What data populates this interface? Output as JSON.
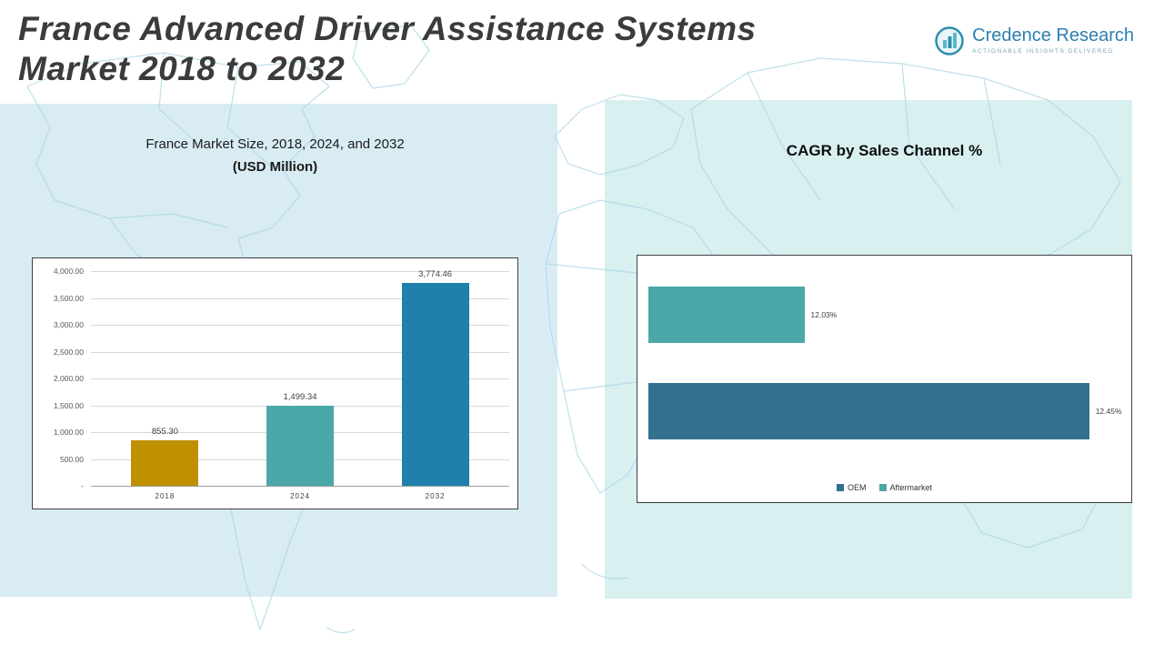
{
  "header": {
    "title_line1": "France Advanced Driver Assistance Systems",
    "title_line2": "Market 2018 to 2032",
    "logo": {
      "name": "Credence Research",
      "tagline": "Actionable Insights Delivered"
    }
  },
  "left_panel": {
    "subtitle_line1": "France Market Size, 2018, 2024, and 2032",
    "subtitle_line2": "(USD Million)"
  },
  "right_panel": {
    "title": "CAGR by Sales Channel %"
  },
  "colors": {
    "panel_left_bg": "#d9ecf4",
    "panel_right_bg": "#d9f0f1",
    "map_line": "#a8d6e6",
    "logo_blue": "#2c7fb0"
  },
  "chart_data": [
    {
      "type": "bar",
      "title": "France Market Size, 2018, 2024, and 2032 (USD Million)",
      "categories": [
        "2018",
        "2024",
        "2032"
      ],
      "values": [
        855.3,
        1499.34,
        3774.46
      ],
      "labels": [
        "855.30",
        "1,499.34",
        "3,774.46"
      ],
      "ylim": [
        0,
        4000
      ],
      "yticks": [
        "4,000.00",
        "3,500.00",
        "3,000.00",
        "2,500.00",
        "2,000.00",
        "1,500.00",
        "1,000.00",
        "500.00",
        "-"
      ],
      "colors": [
        "#bf9000",
        "#4ba8a8",
        "#1f7fad"
      ],
      "grid": true,
      "legend_position": "none"
    },
    {
      "type": "bar-horizontal",
      "title": "CAGR by Sales Channel %",
      "categories": [
        "Aftermarket",
        "OEM"
      ],
      "values": [
        12.03,
        12.45
      ],
      "labels": [
        "12.03%",
        "12.45%"
      ],
      "xlim": [
        11.8,
        12.5
      ],
      "colors": [
        "#4ba8a8",
        "#31708f"
      ],
      "legend": [
        "OEM",
        "Aftermarket"
      ],
      "legend_colors": [
        "#31708f",
        "#4ba8a8"
      ],
      "grid": false,
      "legend_position": "bottom-center"
    }
  ]
}
